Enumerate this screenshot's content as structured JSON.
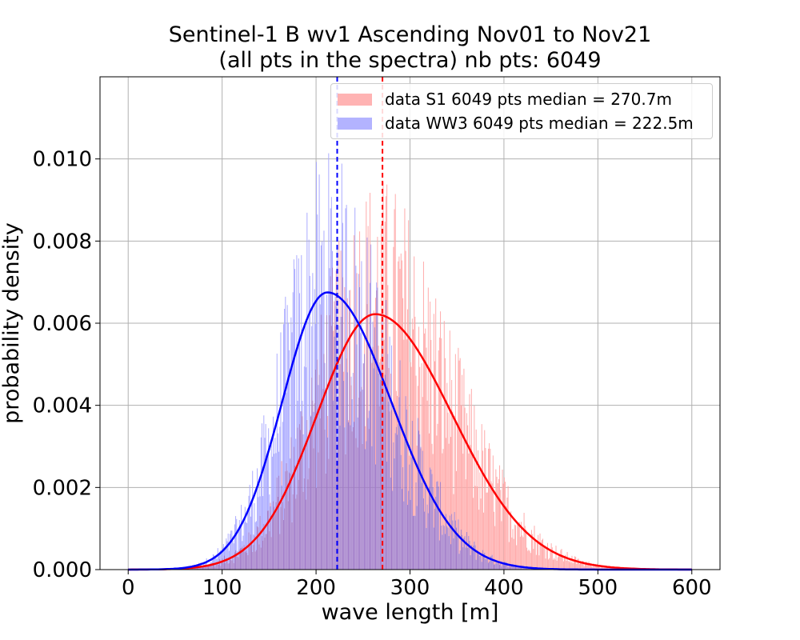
{
  "chart_data": {
    "type": "histogram",
    "title_line1": "Sentinel-1 B wv1 Ascending Nov01 to Nov21",
    "title_line2": "(all pts in the spectra) nb pts: 6049",
    "xlabel": "wave length [m]",
    "ylabel": "probability density",
    "xlim": [
      -30,
      630
    ],
    "ylim": [
      0,
      0.012
    ],
    "xticks": [
      0,
      100,
      200,
      300,
      400,
      500,
      600
    ],
    "yticks": [
      0,
      0.002,
      0.004,
      0.006,
      0.008,
      0.01
    ],
    "ytick_labels": [
      "0.000",
      "0.002",
      "0.004",
      "0.006",
      "0.008",
      "0.010"
    ],
    "grid": true,
    "legend_position": "top-right",
    "series": [
      {
        "name": "data S1 6049 pts median = 270.7m",
        "bar_color": "#ff9999",
        "curve_color": "#ff0000",
        "median": 270.7,
        "fit_peak_x": 263,
        "fit_peak_density": 0.00622,
        "hist_range": [
          60,
          570
        ]
      },
      {
        "name": "data WW3 6049 pts median = 222.5m",
        "bar_color": "#9999ff",
        "curve_color": "#0000ff",
        "median": 222.5,
        "fit_peak_x": 212,
        "fit_peak_density": 0.00675,
        "hist_range": [
          50,
          480
        ]
      }
    ],
    "overlap_color": "#a07ac8"
  }
}
